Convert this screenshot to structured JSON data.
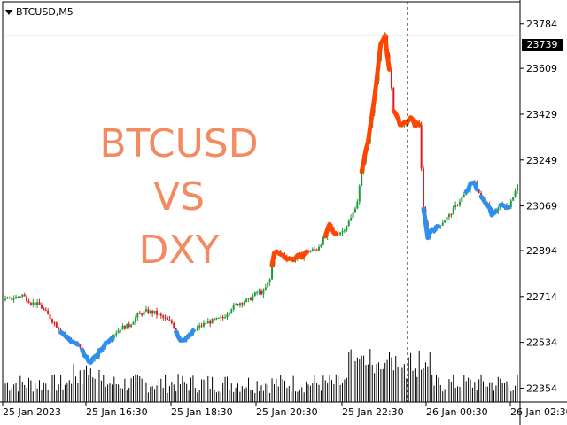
{
  "chart": {
    "symbol_label": "BTCUSD,M5",
    "overlay_title_line1": "BTCUSD VS",
    "overlay_title_line2": "DXY",
    "current_price": "23739",
    "colors": {
      "background": "#ffffff",
      "bull_candle": "#1e9c3a",
      "bear_candle": "#d81e1e",
      "btc_up_segment": "#ff4500",
      "btc_down_segment": "#2f8ff0",
      "volume": "#000000",
      "text": "#000000",
      "overlay_text": "#f28a62"
    }
  },
  "chart_data": {
    "type": "candlestick",
    "symbol": "BTCUSD",
    "timeframe": "M5",
    "y_axis_ticks": [
      23784,
      23609,
      23429,
      23249,
      23069,
      22894,
      22714,
      22534,
      22354
    ],
    "x_axis_ticks": [
      "25 Jan 2023",
      "25 Jan 16:30",
      "25 Jan 18:30",
      "25 Jan 20:30",
      "25 Jan 22:30",
      "26 Jan 00:30",
      "26 Jan 02:30"
    ],
    "ylim": [
      22300,
      23870
    ],
    "last_price": 23739,
    "approx_price_path": [
      [
        0,
        22700
      ],
      [
        3,
        22705
      ],
      [
        8,
        22720
      ],
      [
        12,
        22690
      ],
      [
        16,
        22680
      ],
      [
        20,
        22640
      ],
      [
        24,
        22600
      ],
      [
        28,
        22560
      ],
      [
        30,
        22545
      ],
      [
        33,
        22530
      ],
      [
        36,
        22500
      ],
      [
        39,
        22460
      ],
      [
        42,
        22470
      ],
      [
        46,
        22520
      ],
      [
        50,
        22560
      ],
      [
        54,
        22590
      ],
      [
        58,
        22600
      ],
      [
        62,
        22640
      ],
      [
        66,
        22655
      ],
      [
        70,
        22650
      ],
      [
        74,
        22630
      ],
      [
        78,
        22610
      ],
      [
        80,
        22580
      ],
      [
        82,
        22545
      ],
      [
        86,
        22555
      ],
      [
        90,
        22590
      ],
      [
        94,
        22610
      ],
      [
        98,
        22620
      ],
      [
        102,
        22630
      ],
      [
        106,
        22670
      ],
      [
        110,
        22690
      ],
      [
        114,
        22700
      ],
      [
        118,
        22730
      ],
      [
        121,
        22730
      ],
      [
        124,
        22780
      ],
      [
        126,
        22890
      ],
      [
        130,
        22875
      ],
      [
        134,
        22860
      ],
      [
        138,
        22870
      ],
      [
        142,
        22890
      ],
      [
        146,
        22900
      ],
      [
        150,
        22950
      ],
      [
        152,
        22990
      ],
      [
        154,
        22960
      ],
      [
        158,
        22970
      ],
      [
        162,
        23020
      ],
      [
        165,
        23090
      ],
      [
        168,
        23250
      ],
      [
        170,
        23320
      ],
      [
        172,
        23440
      ],
      [
        174,
        23560
      ],
      [
        176,
        23700
      ],
      [
        178,
        23739
      ],
      [
        180,
        23600
      ],
      [
        182,
        23450
      ],
      [
        184,
        23410
      ],
      [
        186,
        23380
      ],
      [
        188,
        23400
      ],
      [
        190,
        23410
      ],
      [
        192,
        23390
      ],
      [
        194,
        23390
      ],
      [
        196,
        23050
      ],
      [
        198,
        22950
      ],
      [
        200,
        22980
      ],
      [
        202,
        22980
      ],
      [
        204,
        23000
      ],
      [
        208,
        23030
      ],
      [
        212,
        23080
      ],
      [
        216,
        23120
      ],
      [
        218,
        23150
      ],
      [
        220,
        23160
      ],
      [
        223,
        23100
      ],
      [
        226,
        23080
      ],
      [
        228,
        23040
      ],
      [
        232,
        23070
      ],
      [
        236,
        23060
      ],
      [
        238,
        23110
      ],
      [
        240,
        23160
      ]
    ],
    "bar_count": 241
  }
}
